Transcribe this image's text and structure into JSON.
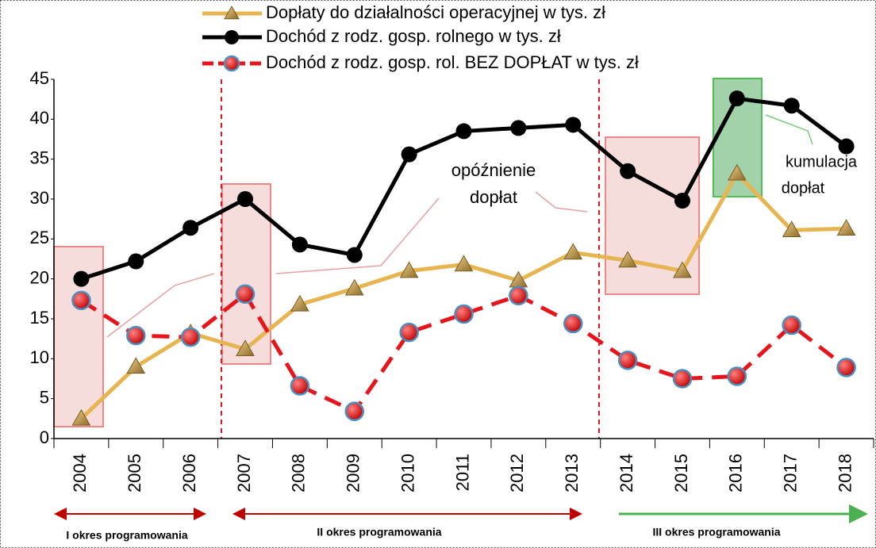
{
  "chart_data": {
    "type": "line",
    "categories": [
      "2004",
      "2005",
      "2006",
      "2007",
      "2008",
      "2009",
      "2010",
      "2011",
      "2012",
      "2013",
      "2014",
      "2015",
      "2016",
      "2017",
      "2018"
    ],
    "series": [
      {
        "name": "Dopłaty do działalności operacyjnej w tys. zł",
        "color": "#e6b450",
        "marker": "triangle",
        "dashed": false,
        "values": [
          2.5,
          9,
          13.2,
          11.2,
          16.8,
          18.8,
          21,
          21.8,
          19.8,
          23.3,
          22.3,
          21,
          33.2,
          26.1,
          26.3
        ]
      },
      {
        "name": "Dochód z rodz. gosp. rolnego w tys. zł",
        "color": "#000000",
        "marker": "circle",
        "dashed": false,
        "values": [
          20,
          22.2,
          26.4,
          30,
          24.3,
          23,
          35.6,
          38.5,
          38.9,
          39.3,
          33.5,
          29.8,
          42.6,
          41.7,
          36.6
        ]
      },
      {
        "name": "Dochód z rodz. gosp. rol. BEZ DOPŁAT w tys. zł",
        "color": "#e8141c",
        "marker": "red-circle",
        "dashed": true,
        "values": [
          17.3,
          12.9,
          12.7,
          18.1,
          6.6,
          3.4,
          13.3,
          15.6,
          17.9,
          14.4,
          9.8,
          7.5,
          7.8,
          14.2,
          8.9
        ]
      }
    ],
    "ylim": [
      0,
      45
    ],
    "yticks": [
      0,
      5,
      10,
      15,
      20,
      25,
      30,
      35,
      40,
      45
    ],
    "grid": false,
    "legend": "top",
    "annotations": [
      {
        "lines": [
          "opóźnienie",
          "dopłat"
        ]
      },
      {
        "lines": [
          "kumulacja",
          "dopłat"
        ]
      }
    ],
    "periods": [
      "I okres programowania",
      "II okres programowania",
      "III okres programowania"
    ]
  }
}
